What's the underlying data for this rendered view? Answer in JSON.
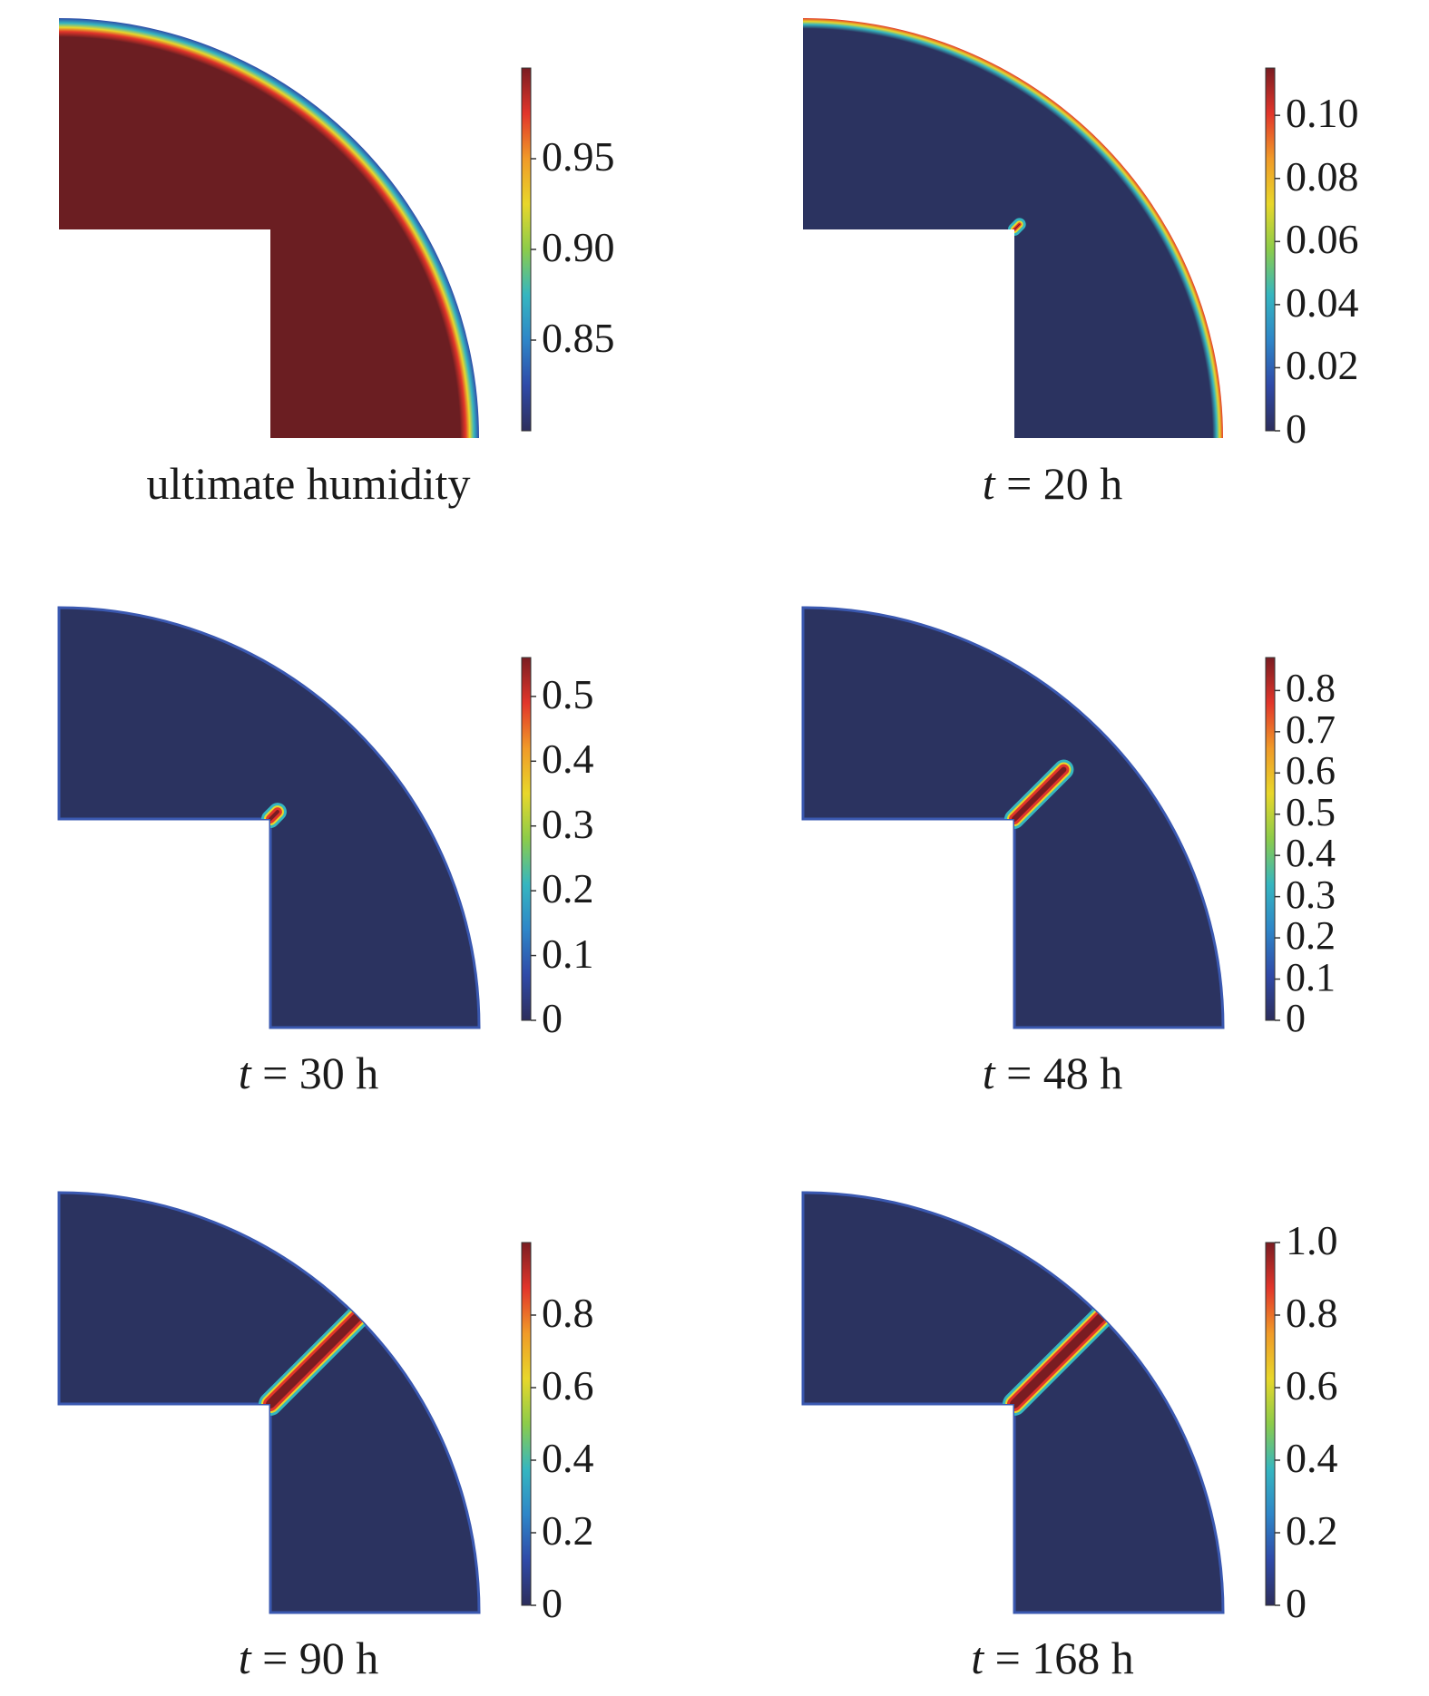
{
  "colors": {
    "background_low": "#2b3360",
    "high": "#6b1e22",
    "colormap": [
      "#2d2e5c",
      "#2f4aa8",
      "#2e86c8",
      "#35b6c0",
      "#8ccc4a",
      "#e8d72a",
      "#f09a28",
      "#e2352a",
      "#7a1c22"
    ]
  },
  "panels": [
    {
      "id": "ultimate",
      "caption": {
        "prefix": "",
        "text": "ultimate humidity"
      },
      "colorbar": {
        "min": 0.8,
        "max": 1.0,
        "ticks": [
          "0.95",
          "0.90",
          "0.85"
        ],
        "tick_values": [
          0.95,
          0.9,
          0.85
        ]
      },
      "field": {
        "fill": "high",
        "rim": true,
        "crack_length": 0.0,
        "crack_width": 0
      }
    },
    {
      "id": "t20",
      "caption": {
        "prefix": "t",
        "text": " = 20 h"
      },
      "colorbar": {
        "min": 0,
        "max": 0.115,
        "ticks": [
          "0.10",
          "0.08",
          "0.06",
          "0.04",
          "0.02",
          "0"
        ],
        "tick_values": [
          0.1,
          0.08,
          0.06,
          0.04,
          0.02,
          0
        ]
      },
      "field": {
        "fill": "low",
        "rim": true,
        "crack_length": 0.01,
        "crack_width": 4
      }
    },
    {
      "id": "t30",
      "caption": {
        "prefix": "t",
        "text": " = 30 h"
      },
      "colorbar": {
        "min": 0,
        "max": 0.56,
        "ticks": [
          "0.5",
          "0.4",
          "0.3",
          "0.2",
          "0.1",
          "0"
        ],
        "tick_values": [
          0.5,
          0.4,
          0.3,
          0.2,
          0.1,
          0
        ]
      },
      "field": {
        "fill": "low",
        "rim": false,
        "crack_length": 0.08,
        "crack_width": 10
      }
    },
    {
      "id": "t48",
      "caption": {
        "prefix": "t",
        "text": " = 48 h"
      },
      "colorbar": {
        "min": 0,
        "max": 0.88,
        "ticks": [
          "0.8",
          "0.7",
          "0.6",
          "0.5",
          "0.4",
          "0.3",
          "0.2",
          "0.1",
          "0"
        ],
        "tick_values": [
          0.8,
          0.7,
          0.6,
          0.5,
          0.4,
          0.3,
          0.2,
          0.1,
          0
        ]
      },
      "field": {
        "fill": "low",
        "rim": false,
        "crack_length": 0.55,
        "crack_width": 12
      }
    },
    {
      "id": "t90",
      "caption": {
        "prefix": "t",
        "text": " = 90 h"
      },
      "colorbar": {
        "min": 0,
        "max": 1.0,
        "ticks": [
          "0.8",
          "0.6",
          "0.4",
          "0.2",
          "0"
        ],
        "tick_values": [
          0.8,
          0.6,
          0.4,
          0.2,
          0
        ]
      },
      "field": {
        "fill": "low",
        "rim": false,
        "crack_length": 1.0,
        "crack_width": 16
      }
    },
    {
      "id": "t168",
      "caption": {
        "prefix": "t",
        "text": " = 168 h"
      },
      "colorbar": {
        "min": 0,
        "max": 1.0,
        "ticks": [
          "1.0",
          "0.8",
          "0.6",
          "0.4",
          "0.2",
          "0"
        ],
        "tick_values": [
          1.0,
          0.8,
          0.6,
          0.4,
          0.2,
          0
        ]
      },
      "field": {
        "fill": "low",
        "rim": false,
        "crack_length": 1.0,
        "crack_width": 16
      }
    }
  ]
}
